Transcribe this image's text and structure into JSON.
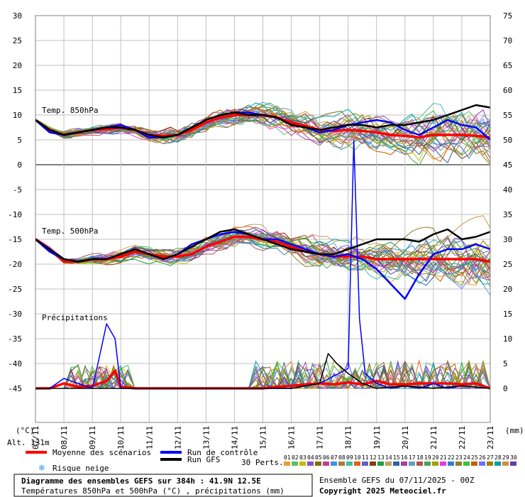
{
  "chart_data": {
    "type": "line",
    "title": "Diagramme des ensembles GEFS sur 384h : 41.9N 12.5E",
    "subtitle": "Températures 850hPa et 500hPa (°C) , précipitations (mm)",
    "altitude_label": "Alt. 131m",
    "run_info": "Ensemble GEFS du 07/11/2025 - 00Z",
    "copyright": "Copyright 2025 Meteociel.fr",
    "xlabel": "",
    "y_left_unit": "(°C)",
    "y_right_unit": "(mm)",
    "y_left_ticks": [
      "30",
      "25",
      "20",
      "15",
      "10",
      "5",
      "0",
      "-5",
      "-10",
      "-15",
      "-20",
      "-25",
      "-30",
      "-35",
      "-40",
      "-45"
    ],
    "y_right_ticks": [
      "75",
      "70",
      "65",
      "60",
      "55",
      "50",
      "45",
      "40",
      "35",
      "30",
      "25",
      "20",
      "15",
      "10",
      "5",
      "0"
    ],
    "ylim_left": [
      -45,
      30
    ],
    "ylim_right": [
      0,
      75
    ],
    "x_ticks": [
      "07/11",
      "08/11",
      "09/11",
      "10/11",
      "11/11",
      "12/11",
      "13/11",
      "14/11",
      "15/11",
      "16/11",
      "17/11",
      "18/11",
      "19/11",
      "20/11",
      "21/11",
      "22/11",
      "23/11"
    ],
    "panel_labels": {
      "t850": "Temp. 850hPa",
      "t500": "Temp. 500hPa",
      "precip": "Précipitations"
    },
    "legend": {
      "mean": "Moyenne des scénarios",
      "control": "Run de contrôle",
      "gfs": "Run GFS",
      "snow": "Risque neige",
      "perts_label": "30 Perts.",
      "pert_numbers": [
        "01",
        "02",
        "03",
        "04",
        "05",
        "06",
        "07",
        "08",
        "09",
        "10",
        "11",
        "12",
        "13",
        "14",
        "15",
        "16",
        "17",
        "18",
        "19",
        "20",
        "21",
        "22",
        "23",
        "24",
        "25",
        "26",
        "27",
        "28",
        "29",
        "30"
      ]
    },
    "colors": {
      "mean": "#ff0000",
      "control": "#0000ff",
      "gfs": "#000000",
      "grid": "#c0c0c0",
      "zero_line": "#808080",
      "perturbations": [
        "#e8a030",
        "#60c060",
        "#c0c000",
        "#9050c0",
        "#807000",
        "#c04090",
        "#4090e0",
        "#a08040",
        "#40c0a0",
        "#e06020",
        "#6060c0",
        "#804000",
        "#20a040",
        "#c0a060",
        "#3060a0",
        "#a040a0",
        "#60a0c0",
        "#b05050",
        "#50a050",
        "#a0a000",
        "#e040e0",
        "#3080c0",
        "#908030",
        "#40c040",
        "#c06000",
        "#7070ff",
        "#a08000",
        "#00a0a0",
        "#d09040",
        "#6040a0"
      ]
    },
    "series": [
      {
        "name": "Moyenne des scénarios",
        "panel": "t850",
        "x": [
          0,
          0.5,
          1,
          1.5,
          2,
          2.5,
          3,
          3.5,
          4,
          4.5,
          5,
          5.5,
          6,
          6.5,
          7,
          7.5,
          8,
          8.5,
          9,
          9.5,
          10,
          10.5,
          11,
          11.5,
          12,
          12.5,
          13,
          13.5,
          14,
          14.5,
          15,
          15.5,
          16
        ],
        "values": [
          9,
          7,
          6,
          6.5,
          7,
          7.2,
          7.5,
          7,
          6,
          5.8,
          6,
          7,
          8.5,
          9.5,
          10,
          10,
          10,
          9.5,
          8.5,
          7.8,
          7,
          6.8,
          7,
          6.8,
          6.5,
          6,
          5.8,
          5.5,
          6,
          6,
          6,
          5.8,
          5.5
        ]
      },
      {
        "name": "Moyenne des scénarios",
        "panel": "t500",
        "x": [
          0,
          0.5,
          1,
          1.5,
          2,
          2.5,
          3,
          3.5,
          4,
          4.5,
          5,
          5.5,
          6,
          6.5,
          7,
          7.5,
          8,
          8.5,
          9,
          9.5,
          10,
          10.5,
          11,
          11.5,
          12,
          12.5,
          13,
          13.5,
          14,
          14.5,
          15,
          15.5,
          16
        ],
        "values": [
          -15,
          -17,
          -19.5,
          -19.5,
          -19,
          -19,
          -18.5,
          -17.5,
          -18,
          -18.5,
          -18.5,
          -18,
          -16.5,
          -15.5,
          -14.5,
          -14.5,
          -15,
          -15.5,
          -16.5,
          -17.5,
          -18,
          -18.5,
          -18.5,
          -18.5,
          -19,
          -19,
          -19,
          -19,
          -19,
          -19,
          -19,
          -19,
          -19.5
        ]
      },
      {
        "name": "Moyenne des scénarios",
        "panel": "precip",
        "x": [
          0,
          0.5,
          1,
          1.5,
          2,
          2.5,
          2.8,
          3,
          3.5,
          4,
          5,
          6,
          7,
          7.5,
          8,
          8.5,
          9,
          9.5,
          10,
          10.5,
          11,
          11.5,
          12,
          12.5,
          13,
          13.5,
          14,
          14.5,
          15,
          15.5,
          16
        ],
        "values": [
          0,
          0,
          1,
          0.3,
          0.5,
          1.5,
          3.5,
          0.3,
          0,
          0,
          0,
          0,
          0,
          0,
          0,
          0.3,
          0.5,
          0.8,
          1,
          0.8,
          1.2,
          0.8,
          1.5,
          0.8,
          0.8,
          1,
          1,
          1,
          0.8,
          1,
          0
        ]
      },
      {
        "name": "Run de contrôle",
        "panel": "t850",
        "x": [
          0,
          0.5,
          1,
          1.5,
          2,
          2.5,
          3,
          3.5,
          4,
          4.5,
          5,
          5.5,
          6,
          6.5,
          7,
          7.5,
          8,
          8.5,
          9,
          9.5,
          10,
          10.5,
          11,
          11.5,
          12,
          12.5,
          13,
          13.5,
          14,
          14.5,
          15,
          15.5,
          16
        ],
        "values": [
          9,
          6.5,
          6,
          6.5,
          7,
          7.5,
          8,
          7,
          5.5,
          5.5,
          6,
          7.5,
          9,
          10,
          10.5,
          10.5,
          10,
          9.5,
          8,
          7.5,
          6.5,
          7,
          8,
          8.5,
          9,
          8.5,
          7,
          6,
          7.5,
          9,
          8,
          7.5,
          5
        ]
      },
      {
        "name": "Run de contrôle",
        "panel": "t500",
        "x": [
          0,
          0.5,
          1,
          1.5,
          2,
          2.5,
          3,
          3.5,
          4,
          4.5,
          5,
          5.5,
          6,
          6.5,
          7,
          7.5,
          8,
          8.5,
          9,
          9.5,
          10,
          10.5,
          11,
          11.5,
          12,
          12.5,
          13,
          13.5,
          14,
          14.5,
          15,
          15.5,
          16
        ],
        "values": [
          -15,
          -17.5,
          -19,
          -19.5,
          -19,
          -19,
          -18,
          -17,
          -18,
          -19,
          -18,
          -16,
          -15,
          -14,
          -13.5,
          -14,
          -15,
          -15,
          -16,
          -17,
          -18,
          -18.5,
          -18,
          -19,
          -21,
          -24,
          -27,
          -22,
          -18,
          -17,
          -17,
          -16,
          -17
        ]
      },
      {
        "name": "Run de contrôle",
        "panel": "precip",
        "x": [
          0,
          0.5,
          1,
          1.5,
          2,
          2.2,
          2.5,
          2.8,
          3,
          3.5,
          4,
          5,
          6,
          7,
          8,
          9,
          10,
          11,
          11.2,
          11.4,
          11.6,
          12,
          12.5,
          13,
          13.5,
          14,
          14.5,
          15,
          16
        ],
        "values": [
          0,
          0,
          2,
          1,
          0,
          5,
          13,
          10,
          0,
          0,
          0,
          0,
          0,
          0,
          0,
          0,
          1,
          4,
          50,
          14,
          3,
          1,
          0,
          0.5,
          0,
          1,
          0,
          0.5,
          0
        ]
      },
      {
        "name": "Run GFS",
        "panel": "t850",
        "x": [
          0,
          0.5,
          1,
          1.5,
          2,
          2.5,
          3,
          3.5,
          4,
          4.5,
          5,
          5.5,
          6,
          6.5,
          7,
          7.5,
          8,
          8.5,
          9,
          9.5,
          10,
          10.5,
          11,
          11.5,
          12,
          12.5,
          13,
          13.5,
          14,
          14.5,
          15,
          15.5,
          16
        ],
        "values": [
          9,
          7,
          6,
          6.5,
          7,
          7.5,
          7.5,
          7,
          6,
          5.5,
          6,
          7.5,
          9,
          10,
          10.5,
          10,
          10,
          9.5,
          8,
          7.5,
          7,
          7.5,
          8,
          8,
          7.5,
          8,
          8,
          8.5,
          9,
          10,
          11,
          12,
          11.5
        ]
      },
      {
        "name": "Run GFS",
        "panel": "t500",
        "x": [
          0,
          0.5,
          1,
          1.5,
          2,
          2.5,
          3,
          3.5,
          4,
          4.5,
          5,
          5.5,
          6,
          6.5,
          7,
          7.5,
          8,
          8.5,
          9,
          9.5,
          10,
          10.5,
          11,
          11.5,
          12,
          12.5,
          13,
          13.5,
          14,
          14.5,
          15,
          15.5,
          16
        ],
        "values": [
          -15,
          -17,
          -19,
          -19.5,
          -19,
          -19,
          -18,
          -17,
          -18,
          -19,
          -18,
          -16.5,
          -15,
          -13.5,
          -13,
          -14,
          -15,
          -16,
          -17,
          -17.5,
          -18,
          -18,
          -17,
          -16,
          -15,
          -15,
          -15,
          -15.5,
          -14,
          -13,
          -15,
          -14.5,
          -13.5
        ]
      },
      {
        "name": "Run GFS",
        "panel": "precip",
        "x": [
          0,
          1,
          2,
          3,
          4,
          5,
          6,
          7,
          8,
          9,
          9.5,
          10,
          10.3,
          10.6,
          11,
          11.5,
          12,
          13,
          14,
          15,
          16
        ],
        "values": [
          0,
          0,
          0,
          0,
          0,
          0,
          0,
          0,
          0,
          0,
          0.5,
          1,
          7,
          5,
          3,
          1,
          0,
          0.5,
          0,
          0.5,
          0
        ]
      }
    ]
  }
}
